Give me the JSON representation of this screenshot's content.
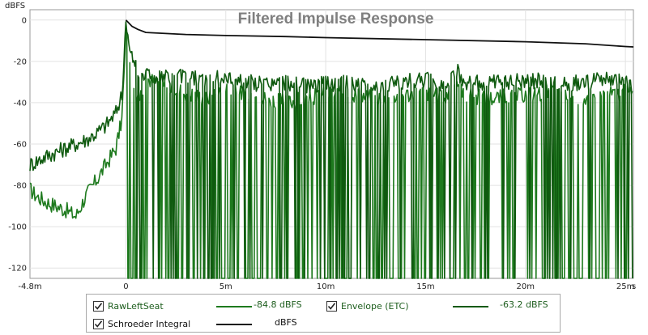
{
  "chart_data": {
    "type": "line",
    "title": "Filtered Impulse Response",
    "ylabel": "dBFS",
    "xlabel": "",
    "x_unit": "s",
    "xlim": [
      -0.0048,
      0.0254
    ],
    "ylim": [
      -125,
      5
    ],
    "x_ticks": [
      {
        "value": -0.0048,
        "label": "-4.8m"
      },
      {
        "value": 0,
        "label": "0"
      },
      {
        "value": 0.005,
        "label": "5m"
      },
      {
        "value": 0.01,
        "label": "10m"
      },
      {
        "value": 0.015,
        "label": "15m"
      },
      {
        "value": 0.02,
        "label": "20m"
      },
      {
        "value": 0.025,
        "label": "25m"
      }
    ],
    "y_ticks": [
      0,
      -20,
      -40,
      -60,
      -80,
      -100,
      -120
    ],
    "grid": true,
    "series": [
      {
        "name": "RawLeftSeat",
        "color": "#1e7a1e",
        "readout": "-84.8 dBFS",
        "x": [
          -0.0048,
          -0.0045,
          -0.004,
          -0.0035,
          -0.003,
          -0.0025,
          -0.002,
          -0.0015,
          -0.001,
          -0.0005,
          -0.0002,
          0,
          0.0001,
          0.0003,
          0.0006,
          0.001,
          0.002,
          0.003,
          0.004,
          0.005,
          0.006,
          0.007,
          0.008,
          0.009,
          0.01,
          0.011,
          0.012,
          0.013,
          0.014,
          0.015,
          0.016,
          0.0165,
          0.017,
          0.018,
          0.019,
          0.02,
          0.021,
          0.022,
          0.023,
          0.024,
          0.025,
          0.0254
        ],
        "y": [
          -82,
          -85,
          -88,
          -90,
          -92,
          -95,
          -85,
          -78,
          -70,
          -62,
          -48,
          -2,
          -12,
          -25,
          -40,
          -28,
          -32,
          -35,
          -38,
          -33,
          -36,
          -38,
          -40,
          -38,
          -36,
          -35,
          -37,
          -38,
          -36,
          -35,
          -38,
          -28,
          -36,
          -38,
          -37,
          -36,
          -35,
          -37,
          -38,
          -36,
          -35,
          -36
        ]
      },
      {
        "name": "Envelope (ETC)",
        "color": "#0f5a0f",
        "readout": "-63.2 dBFS",
        "x": [
          -0.0048,
          -0.004,
          -0.003,
          -0.002,
          -0.0015,
          -0.001,
          -0.0005,
          -0.0002,
          0,
          0.0001,
          0.0003,
          0.0006,
          0.001,
          0.002,
          0.003,
          0.004,
          0.005,
          0.006,
          0.007,
          0.008,
          0.009,
          0.01,
          0.011,
          0.012,
          0.013,
          0.014,
          0.015,
          0.016,
          0.0165,
          0.017,
          0.018,
          0.019,
          0.02,
          0.021,
          0.022,
          0.023,
          0.024,
          0.025,
          0.0254
        ],
        "y": [
          -70,
          -66,
          -62,
          -58,
          -55,
          -51,
          -45,
          -36,
          -1,
          -8,
          -18,
          -24,
          -26,
          -28,
          -27,
          -29,
          -28,
          -30,
          -31,
          -30,
          -32,
          -31,
          -30,
          -32,
          -31,
          -30,
          -29,
          -31,
          -24,
          -30,
          -31,
          -30,
          -29,
          -30,
          -31,
          -30,
          -29,
          -30,
          -32
        ]
      },
      {
        "name": "Schroeder Integral",
        "color": "#111111",
        "readout": "dBFS",
        "x": [
          0,
          0.0001,
          0.0003,
          0.0006,
          0.001,
          0.002,
          0.003,
          0.005,
          0.008,
          0.01,
          0.015,
          0.02,
          0.023,
          0.025,
          0.0254
        ],
        "y": [
          0,
          -1,
          -3,
          -4.5,
          -6,
          -6.5,
          -7,
          -7.5,
          -8,
          -8.5,
          -9.5,
          -10.5,
          -11.5,
          -12.8,
          -13
        ]
      }
    ]
  },
  "legend": {
    "items": [
      {
        "label": "RawLeftSeat",
        "value": "-84.8 dBFS",
        "checked": true
      },
      {
        "label": "Envelope (ETC)",
        "value": "-63.2 dBFS",
        "checked": true
      },
      {
        "label": "Schroeder Integral",
        "value": "dBFS",
        "checked": true
      }
    ]
  }
}
